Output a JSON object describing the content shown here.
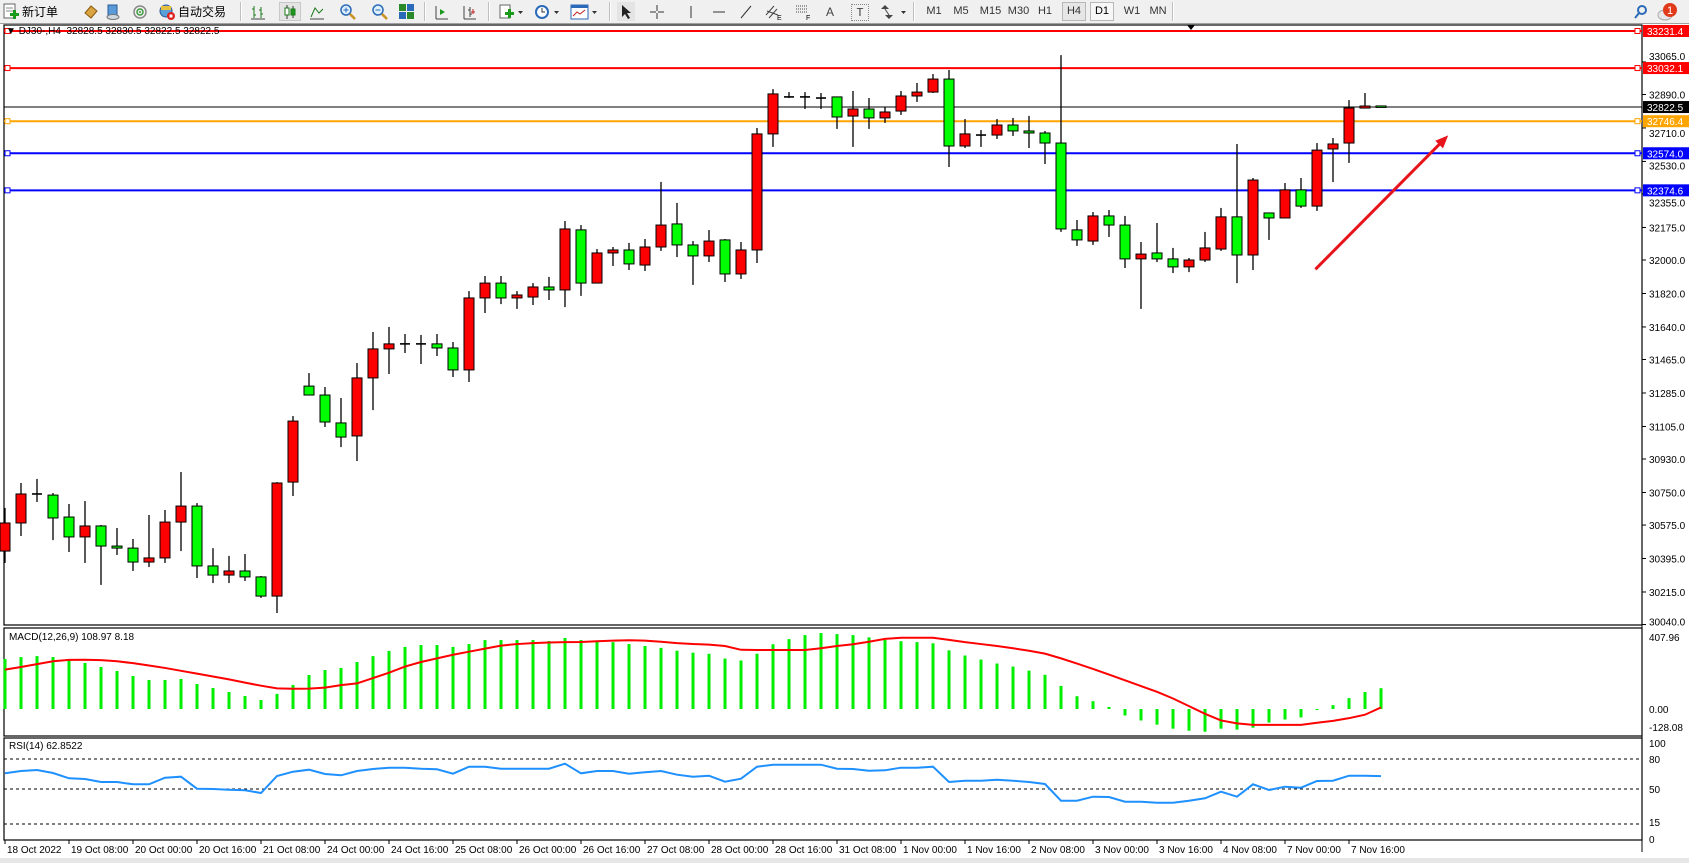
{
  "toolbar": {
    "new_order_label": "新订单",
    "autotrade_label": "自动交易",
    "timeframes": [
      "M1",
      "M5",
      "M15",
      "M30",
      "H1",
      "H4",
      "D1",
      "W1",
      "MN"
    ],
    "active_timeframe": "H4",
    "notification_count": "1",
    "text_tool_label": "T",
    "label_tool_label": "A",
    "channel_tool_suffix": "E",
    "fibo_tool_suffix": "F"
  },
  "chart": {
    "symbol_header": "DJ30-,H4",
    "ohlc_header": "32828.5 32830.5 32822.5 32822.5",
    "colors": {
      "bull": "#ff0000",
      "bear": "#00ff00",
      "outline": "#000000",
      "macd_hist": "#00ee00",
      "macd_signal": "#ff0000",
      "rsi": "#1e90ff",
      "arrow": "#e8141c"
    },
    "price_ticks": [
      "33065.0",
      "32890.0",
      "32710.0",
      "32530.0",
      "32355.0",
      "32175.0",
      "32000.0",
      "31820.0",
      "31640.0",
      "31465.0",
      "31285.0",
      "31105.0",
      "30930.0",
      "30750.0",
      "30575.0",
      "30395.0",
      "30215.0",
      "30040.0"
    ],
    "hlines": [
      {
        "price": "33231.4",
        "color": "#ff0000"
      },
      {
        "price": "33032.1",
        "color": "#ff0000"
      },
      {
        "price": "32746.4",
        "color": "#ffa500"
      },
      {
        "price": "32574.0",
        "color": "#0000ff"
      },
      {
        "price": "32374.6",
        "color": "#0000ff"
      }
    ],
    "current_price": "32822.5",
    "time_labels": [
      "18 Oct 2022",
      "19 Oct 08:00",
      "20 Oct 00:00",
      "20 Oct 16:00",
      "21 Oct 08:00",
      "24 Oct 00:00",
      "24 Oct 16:00",
      "25 Oct 08:00",
      "26 Oct 00:00",
      "26 Oct 16:00",
      "27 Oct 08:00",
      "28 Oct 00:00",
      "28 Oct 16:00",
      "31 Oct 08:00",
      "1 Nov 00:00",
      "1 Nov 16:00",
      "2 Nov 08:00",
      "3 Nov 00:00",
      "3 Nov 16:00",
      "4 Nov 08:00",
      "7 Nov 00:00",
      "7 Nov 16:00"
    ],
    "arrow_annotation": {
      "from_bar": 81.9,
      "from_price": 31950,
      "to_bar": 90.2,
      "to_price": 32670
    }
  },
  "chart_data": {
    "type": "candlestick",
    "ohlc": [
      [
        30435,
        30667,
        30371,
        30586
      ],
      [
        30586,
        30801,
        30516,
        30742
      ],
      [
        30742,
        30823,
        30699,
        30742
      ],
      [
        30736,
        30747,
        30494,
        30613
      ],
      [
        30618,
        30688,
        30430,
        30511
      ],
      [
        30511,
        30704,
        30371,
        30570
      ],
      [
        30570,
        30575,
        30253,
        30462
      ],
      [
        30462,
        30559,
        30414,
        30451
      ],
      [
        30451,
        30500,
        30328,
        30376
      ],
      [
        30376,
        30629,
        30349,
        30398
      ],
      [
        30398,
        30656,
        30371,
        30591
      ],
      [
        30591,
        30860,
        30435,
        30677
      ],
      [
        30677,
        30693,
        30290,
        30355
      ],
      [
        30355,
        30451,
        30263,
        30306
      ],
      [
        30306,
        30409,
        30263,
        30328
      ],
      [
        30328,
        30419,
        30274,
        30296
      ],
      [
        30296,
        30301,
        30183,
        30193
      ],
      [
        30193,
        30806,
        30102,
        30801
      ],
      [
        30806,
        31161,
        30731,
        31134
      ],
      [
        31322,
        31392,
        31274,
        31274
      ],
      [
        31274,
        31317,
        31102,
        31129
      ],
      [
        31124,
        31258,
        30994,
        31048
      ],
      [
        31054,
        31446,
        30919,
        31366
      ],
      [
        31366,
        31613,
        31193,
        31522
      ],
      [
        31522,
        31640,
        31387,
        31549
      ],
      [
        31549,
        31602,
        31500,
        31549
      ],
      [
        31549,
        31597,
        31441,
        31549
      ],
      [
        31549,
        31602,
        31484,
        31527
      ],
      [
        31527,
        31559,
        31371,
        31409
      ],
      [
        31409,
        31833,
        31344,
        31796
      ],
      [
        31796,
        31914,
        31715,
        31876
      ],
      [
        31876,
        31914,
        31763,
        31796
      ],
      [
        31796,
        31833,
        31737,
        31812
      ],
      [
        31801,
        31876,
        31758,
        31855
      ],
      [
        31855,
        31909,
        31785,
        31839
      ],
      [
        31839,
        32210,
        31747,
        32167
      ],
      [
        32162,
        32188,
        31807,
        31876
      ],
      [
        31876,
        32059,
        31876,
        32038
      ],
      [
        32038,
        32070,
        31968,
        32054
      ],
      [
        32054,
        32092,
        31946,
        31979
      ],
      [
        31973,
        32113,
        31941,
        32070
      ],
      [
        32070,
        32420,
        32049,
        32188
      ],
      [
        32194,
        32307,
        32016,
        32081
      ],
      [
        32081,
        32102,
        31866,
        32022
      ],
      [
        32022,
        32161,
        31989,
        32102
      ],
      [
        32108,
        32113,
        31882,
        31925
      ],
      [
        31925,
        32097,
        31898,
        32054
      ],
      [
        32054,
        32710,
        31984,
        32678
      ],
      [
        32678,
        32919,
        32608,
        32893
      ],
      [
        32877,
        32903,
        32871,
        32877
      ],
      [
        32877,
        32903,
        32812,
        32877
      ],
      [
        32871,
        32898,
        32812,
        32871
      ],
      [
        32877,
        32877,
        32705,
        32769
      ],
      [
        32774,
        32909,
        32608,
        32812
      ],
      [
        32812,
        32871,
        32705,
        32764
      ],
      [
        32764,
        32822,
        32737,
        32796
      ],
      [
        32801,
        32909,
        32780,
        32882
      ],
      [
        32882,
        32952,
        32850,
        32903
      ],
      [
        32903,
        33000,
        32898,
        32973
      ],
      [
        32973,
        33022,
        32500,
        32613
      ],
      [
        32613,
        32758,
        32602,
        32678
      ],
      [
        32672,
        32699,
        32608,
        32672
      ],
      [
        32672,
        32758,
        32651,
        32726
      ],
      [
        32726,
        32764,
        32667,
        32694
      ],
      [
        32694,
        32775,
        32602,
        32683
      ],
      [
        32683,
        32694,
        32516,
        32629
      ],
      [
        32629,
        33102,
        32151,
        32167
      ],
      [
        32162,
        32215,
        32076,
        32108
      ],
      [
        32102,
        32258,
        32081,
        32237
      ],
      [
        32237,
        32269,
        32124,
        32188
      ],
      [
        32188,
        32237,
        31957,
        32006
      ],
      [
        32006,
        32097,
        31737,
        32032
      ],
      [
        32038,
        32199,
        31989,
        32006
      ],
      [
        32006,
        32065,
        31930,
        31963
      ],
      [
        31963,
        32011,
        31935,
        32000
      ],
      [
        32000,
        32151,
        31989,
        32065
      ],
      [
        32059,
        32280,
        32049,
        32232
      ],
      [
        32232,
        32624,
        31876,
        32027
      ],
      [
        32027,
        32441,
        31946,
        32430
      ],
      [
        32253,
        32253,
        32108,
        32226
      ],
      [
        32226,
        32414,
        32226,
        32377
      ],
      [
        32377,
        32441,
        32280,
        32290
      ],
      [
        32290,
        32629,
        32264,
        32591
      ],
      [
        32597,
        32656,
        32419,
        32624
      ],
      [
        32629,
        32860,
        32522,
        32817
      ],
      [
        32817,
        32898,
        32817,
        32828
      ],
      [
        32828.5,
        32830.5,
        32822.5,
        32822.5
      ]
    ],
    "price_range": [
      30040,
      33260
    ],
    "macd": {
      "label": "MACD(12,26,9) 108.97 8.18",
      "axis_labels": [
        "407.96",
        "0.00",
        "-128.08"
      ],
      "range": [
        -128.08,
        407.96
      ],
      "histogram": [
        262,
        272,
        277,
        272,
        256,
        241,
        220,
        199,
        173,
        152,
        152,
        157,
        131,
        110,
        89,
        68,
        47,
        79,
        126,
        178,
        204,
        215,
        246,
        277,
        304,
        325,
        335,
        335,
        325,
        340,
        361,
        361,
        361,
        361,
        356,
        372,
        361,
        355,
        350,
        340,
        330,
        320,
        305,
        295,
        289,
        264,
        254,
        289,
        339,
        366,
        387,
        398,
        392,
        387,
        375,
        362,
        355,
        350,
        344,
        307,
        280,
        259,
        238,
        222,
        201,
        179,
        121,
        67,
        41,
        11,
        -34,
        -60,
        -82,
        -103,
        -114,
        -119,
        -103,
        -108,
        -98,
        -71,
        -55,
        -44,
        -5,
        20,
        57,
        89,
        108.97
      ],
      "signal": [
        206,
        220,
        235,
        250,
        257,
        258,
        256,
        250,
        240,
        228,
        215,
        200,
        185,
        170,
        155,
        138,
        122,
        108,
        106,
        107,
        112,
        125,
        134,
        162,
        190,
        222,
        246,
        265,
        284,
        300,
        316,
        332,
        340,
        345,
        348,
        350,
        351,
        355,
        358,
        360,
        358,
        352,
        345,
        340,
        337,
        330,
        310,
        309,
        309,
        309,
        309,
        318,
        330,
        339,
        352,
        367,
        373,
        373,
        373,
        362,
        350,
        340,
        330,
        318,
        305,
        290,
        265,
        238,
        210,
        180,
        150,
        120,
        90,
        55,
        15,
        -25,
        -60,
        -75,
        -83,
        -83,
        -83,
        -83,
        -72,
        -62,
        -48,
        -30,
        8.18
      ]
    },
    "rsi": {
      "label": "RSI(14) 62.8522",
      "axis_labels": [
        "100",
        "80",
        "50",
        "15",
        "0"
      ],
      "levels": [
        80,
        50,
        15
      ],
      "range": [
        0,
        100
      ],
      "values": [
        65.7,
        68,
        69,
        66,
        60.7,
        60,
        57,
        57,
        54.7,
        54.7,
        61.3,
        62.3,
        50.3,
        50,
        49.3,
        48.7,
        46,
        63,
        67.3,
        69.3,
        65,
        63.7,
        68,
        70,
        71.3,
        71.3,
        70.3,
        69.7,
        65.3,
        72.3,
        72.3,
        70.3,
        70.3,
        70.3,
        70.3,
        75.3,
        65.7,
        68,
        68,
        65.3,
        66.7,
        68,
        64.3,
        62.3,
        63.3,
        57.3,
        60.3,
        72.3,
        74.3,
        74.3,
        74.3,
        74.3,
        70.3,
        70,
        68.3,
        68.7,
        71.3,
        71.3,
        72.3,
        57,
        58.3,
        58.3,
        59.3,
        58.3,
        57,
        55,
        38.3,
        38.3,
        42.3,
        42,
        37.3,
        37.3,
        36.3,
        36.3,
        38.3,
        40.7,
        47.3,
        42.3,
        54.7,
        49,
        52.3,
        51.3,
        58,
        58.3,
        63.3,
        63.3,
        62.85
      ]
    }
  }
}
